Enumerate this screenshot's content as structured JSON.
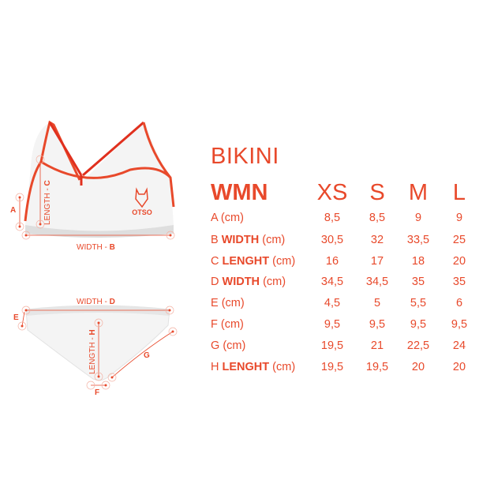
{
  "title": "BIKINI",
  "header": {
    "group": "WMN",
    "sizes": [
      "XS",
      "S",
      "M",
      "L"
    ]
  },
  "rows": [
    {
      "letter": "A",
      "name": "",
      "unit": "(cm)",
      "values": [
        "8,5",
        "8,5",
        "9",
        "9"
      ]
    },
    {
      "letter": "B",
      "name": "WIDTH",
      "unit": "(cm)",
      "values": [
        "30,5",
        "32",
        "33,5",
        "25"
      ]
    },
    {
      "letter": "C",
      "name": "LENGHT",
      "unit": "(cm)",
      "values": [
        "16",
        "17",
        "18",
        "20"
      ]
    },
    {
      "letter": "D",
      "name": "WIDTH",
      "unit": "(cm)",
      "values": [
        "34,5",
        "34,5",
        "35",
        "35"
      ]
    },
    {
      "letter": "E",
      "name": "",
      "unit": "(cm)",
      "values": [
        "4,5",
        "5",
        "5,5",
        "6"
      ]
    },
    {
      "letter": "F",
      "name": "",
      "unit": "(cm)",
      "values": [
        "9,5",
        "9,5",
        "9,5",
        "9,5"
      ]
    },
    {
      "letter": "G",
      "name": "",
      "unit": "(cm)",
      "values": [
        "19,5",
        "21",
        "22,5",
        "24"
      ]
    },
    {
      "letter": "H",
      "name": "LENGHT",
      "unit": "(cm)",
      "values": [
        "19,5",
        "19,5",
        "20",
        "20"
      ]
    }
  ],
  "diagram": {
    "top_labels": {
      "a": "A",
      "length_c": "LENGTH - ",
      "c": "C",
      "width_b": "WIDTH - ",
      "b": "B"
    },
    "bottom_labels": {
      "width_d": "WIDTH - ",
      "d": "D",
      "e": "E",
      "length_h": "LENGTH - ",
      "h": "H",
      "f": "F",
      "g": "G"
    },
    "logo": "OTSO"
  },
  "colors": {
    "accent": "#e8492b",
    "strap": "#e0301e",
    "garment": "#f2f2f2"
  }
}
